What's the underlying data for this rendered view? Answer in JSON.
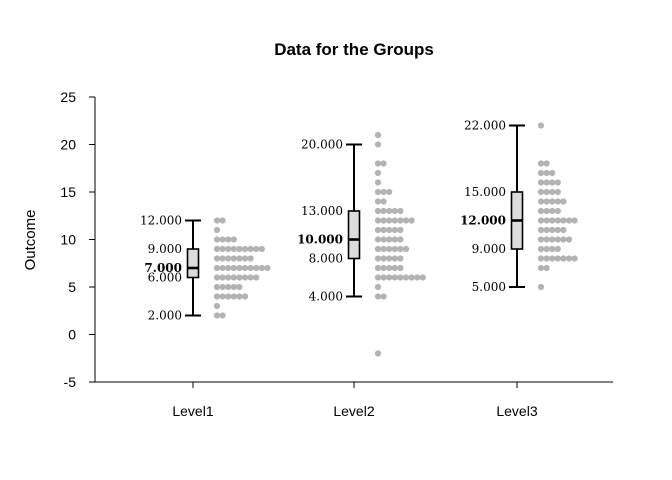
{
  "chart_data": {
    "type": "box_dot",
    "title": "Data for the Groups",
    "ylabel": "Outcome",
    "ylim": [
      -5,
      25
    ],
    "yticks": [
      -5,
      0,
      5,
      10,
      15,
      20,
      25
    ],
    "categories": [
      "Level1",
      "Level2",
      "Level3"
    ],
    "colors": {
      "points": "#a6a6a6",
      "box_fill": "#dcdcdc",
      "stroke": "#000000"
    },
    "groups": [
      {
        "name": "Level1",
        "min": 2,
        "q1": 6,
        "median": 7,
        "q3": 9,
        "max": 12,
        "labels": [
          "12.000",
          "9.000",
          "7.000",
          "6.000",
          "2.000"
        ],
        "points": [
          2,
          2,
          3,
          4,
          4,
          4,
          4,
          4,
          4,
          5,
          5,
          5,
          5,
          5,
          6,
          6,
          6,
          6,
          6,
          6,
          6,
          6,
          7,
          7,
          7,
          7,
          7,
          7,
          7,
          7,
          7,
          7,
          8,
          8,
          8,
          8,
          8,
          8,
          8,
          9,
          9,
          9,
          9,
          9,
          9,
          9,
          9,
          9,
          10,
          10,
          10,
          10,
          11,
          12,
          12
        ]
      },
      {
        "name": "Level2",
        "min": 4,
        "q1": 8,
        "median": 10,
        "q3": 13,
        "max": 20,
        "labels": [
          "20.000",
          "13.000",
          "10.000",
          "8.000",
          "4.000"
        ],
        "points": [
          -2,
          4,
          4,
          5,
          6,
          6,
          6,
          6,
          6,
          6,
          6,
          6,
          6,
          7,
          7,
          7,
          7,
          7,
          8,
          8,
          8,
          8,
          8,
          9,
          9,
          9,
          9,
          9,
          9,
          10,
          10,
          10,
          10,
          10,
          11,
          11,
          11,
          11,
          11,
          12,
          12,
          12,
          12,
          12,
          12,
          12,
          13,
          13,
          13,
          13,
          13,
          14,
          14,
          15,
          15,
          15,
          16,
          17,
          18,
          18,
          20,
          21
        ]
      },
      {
        "name": "Level3",
        "min": 5,
        "q1": 9,
        "median": 12,
        "q3": 15,
        "max": 22,
        "labels": [
          "22.000",
          "15.000",
          "12.000",
          "9.000",
          "5.000"
        ],
        "points": [
          5,
          7,
          7,
          8,
          8,
          8,
          8,
          8,
          8,
          8,
          9,
          9,
          9,
          9,
          10,
          10,
          10,
          10,
          10,
          10,
          11,
          11,
          11,
          11,
          11,
          12,
          12,
          12,
          12,
          12,
          12,
          12,
          13,
          13,
          13,
          13,
          14,
          14,
          14,
          14,
          14,
          15,
          15,
          15,
          15,
          16,
          16,
          16,
          16,
          17,
          17,
          17,
          18,
          18,
          22
        ]
      }
    ]
  }
}
